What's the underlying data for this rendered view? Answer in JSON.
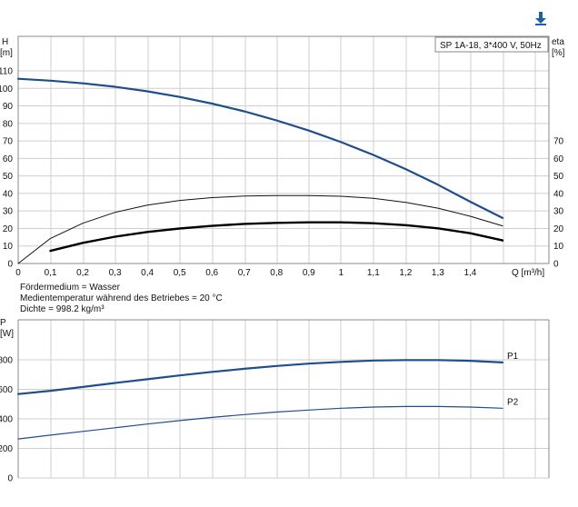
{
  "download_icon": {
    "name": "download-arrow-icon",
    "color": "#1f5fa8"
  },
  "chart_data": [
    {
      "type": "line",
      "box_label": "SP 1A-18, 3*400 V, 50Hz",
      "ylabel_left": [
        "H",
        "[m]"
      ],
      "ylabel_right": [
        "eta",
        "[%]"
      ],
      "xlabel": "Q [m³/h]",
      "xlim": [
        0,
        1.55
      ],
      "ylim": [
        0,
        110
      ],
      "x_ticks": [
        0,
        0.1,
        0.2,
        0.3,
        0.4,
        0.5,
        0.6,
        0.7,
        0.8,
        0.9,
        1,
        1.1,
        1.2,
        1.3,
        1.4
      ],
      "x_tick_labels": [
        "0",
        "0,1",
        "0,2",
        "0,3",
        "0,4",
        "0,5",
        "0,6",
        "0,7",
        "0,8",
        "0,9",
        "1",
        "1,1",
        "1,2",
        "1,3",
        "1,4"
      ],
      "left_ticks": [
        0,
        10,
        20,
        30,
        40,
        50,
        60,
        70,
        80,
        90,
        100,
        110
      ],
      "left_tick_labels": [
        "0",
        "10",
        "20",
        "30",
        "40",
        "50",
        "60",
        "70",
        "80",
        "90",
        "100",
        "110"
      ],
      "right_ticks": [
        0,
        10,
        20,
        30,
        40,
        50,
        60,
        70
      ],
      "right_tick_labels": [
        "0",
        "10",
        "20",
        "30",
        "40",
        "50",
        "60",
        "70"
      ],
      "grid": true,
      "series": [
        {
          "color": "#1f4e8c",
          "width": 2.2,
          "x": [
            0,
            0.1,
            0.2,
            0.3,
            0.4,
            0.5,
            0.6,
            0.7,
            0.8,
            0.9,
            1.0,
            1.1,
            1.2,
            1.3,
            1.4,
            1.5
          ],
          "y": [
            105.5,
            104.4,
            102.9,
            100.9,
            98.3,
            95.1,
            91.3,
            86.9,
            81.7,
            75.9,
            69.3,
            62.0,
            53.9,
            45.0,
            35.3,
            26.0
          ]
        },
        {
          "color": "#111111",
          "width": 1.0,
          "x": [
            0,
            0.1,
            0.2,
            0.3,
            0.4,
            0.5,
            0.6,
            0.7,
            0.8,
            0.9,
            1.0,
            1.1,
            1.2,
            1.3,
            1.4,
            1.5
          ],
          "y": [
            0,
            14.3,
            23.0,
            29.2,
            33.3,
            36.0,
            37.6,
            38.5,
            38.8,
            38.8,
            38.4,
            37.2,
            34.9,
            31.6,
            27.0,
            21.5
          ]
        },
        {
          "color": "#000000",
          "width": 2.4,
          "x": [
            0.1,
            0.2,
            0.3,
            0.4,
            0.5,
            0.6,
            0.7,
            0.8,
            0.9,
            1.0,
            1.1,
            1.2,
            1.3,
            1.4,
            1.5
          ],
          "y": [
            7.2,
            11.8,
            15.3,
            18.0,
            20.0,
            21.5,
            22.6,
            23.2,
            23.5,
            23.5,
            23.0,
            21.9,
            20.1,
            17.3,
            13.2
          ]
        }
      ]
    },
    {
      "type": "line",
      "ylabel": [
        "P",
        "[W]"
      ],
      "xlim": [
        0,
        1.55
      ],
      "ylim": [
        0,
        800
      ],
      "left_ticks": [
        0,
        200,
        400,
        600,
        800
      ],
      "left_tick_labels": [
        "0",
        "200",
        "400",
        "600",
        "800"
      ],
      "grid": true,
      "series": [
        {
          "name": "P1",
          "color": "#1f4e8c",
          "width": 2.2,
          "x": [
            0,
            0.1,
            0.2,
            0.3,
            0.4,
            0.5,
            0.6,
            0.7,
            0.8,
            0.9,
            1.0,
            1.1,
            1.2,
            1.3,
            1.4,
            1.5
          ],
          "y": [
            568,
            590,
            616,
            643,
            668,
            694,
            718,
            739,
            758,
            774,
            786,
            795,
            798,
            798,
            793,
            782
          ]
        },
        {
          "name": "P2",
          "color": "#1f4e8c",
          "width": 1.2,
          "x": [
            0,
            0.1,
            0.2,
            0.3,
            0.4,
            0.5,
            0.6,
            0.7,
            0.8,
            0.9,
            1.0,
            1.1,
            1.2,
            1.3,
            1.4,
            1.5
          ],
          "y": [
            264,
            290,
            315,
            340,
            365,
            388,
            410,
            429,
            446,
            460,
            472,
            480,
            484,
            484,
            480,
            472
          ]
        }
      ]
    }
  ],
  "info_lines": [
    "Fördermedium = Wasser",
    "Medientemperatur während des Betriebes = 20 °C",
    "Dichte = 998.2 kg/m³"
  ]
}
